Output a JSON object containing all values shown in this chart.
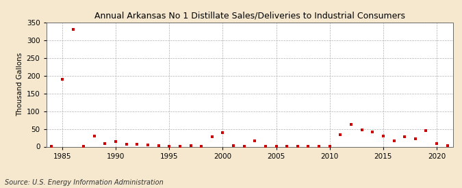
{
  "title": "Annual Arkansas No 1 Distillate Sales/Deliveries to Industrial Consumers",
  "ylabel": "Thousand Gallons",
  "source": "Source: U.S. Energy Information Administration",
  "background_color": "#f5e8ce",
  "plot_background_color": "#ffffff",
  "marker_color": "#cc0000",
  "xlim": [
    1983.5,
    2021.5
  ],
  "ylim": [
    0,
    350
  ],
  "yticks": [
    0,
    50,
    100,
    150,
    200,
    250,
    300,
    350
  ],
  "xticks": [
    1985,
    1990,
    1995,
    2000,
    2005,
    2010,
    2015,
    2020
  ],
  "years": [
    1984,
    1985,
    1986,
    1987,
    1988,
    1989,
    1990,
    1991,
    1992,
    1993,
    1994,
    1995,
    1996,
    1997,
    1998,
    1999,
    2000,
    2001,
    2002,
    2003,
    2004,
    2005,
    2006,
    2007,
    2008,
    2009,
    2010,
    2011,
    2012,
    2013,
    2014,
    2015,
    2016,
    2017,
    2018,
    2019,
    2020,
    2021
  ],
  "values": [
    1,
    190,
    330,
    1,
    29,
    9,
    15,
    7,
    6,
    5,
    3,
    1,
    1,
    2,
    1,
    28,
    40,
    2,
    1,
    17,
    1,
    1,
    1,
    1,
    1,
    1,
    1,
    33,
    63,
    47,
    42,
    29,
    17,
    28,
    22,
    46,
    8,
    3
  ],
  "title_fontsize": 9,
  "ylabel_fontsize": 7.5,
  "tick_fontsize": 7.5,
  "source_fontsize": 7
}
